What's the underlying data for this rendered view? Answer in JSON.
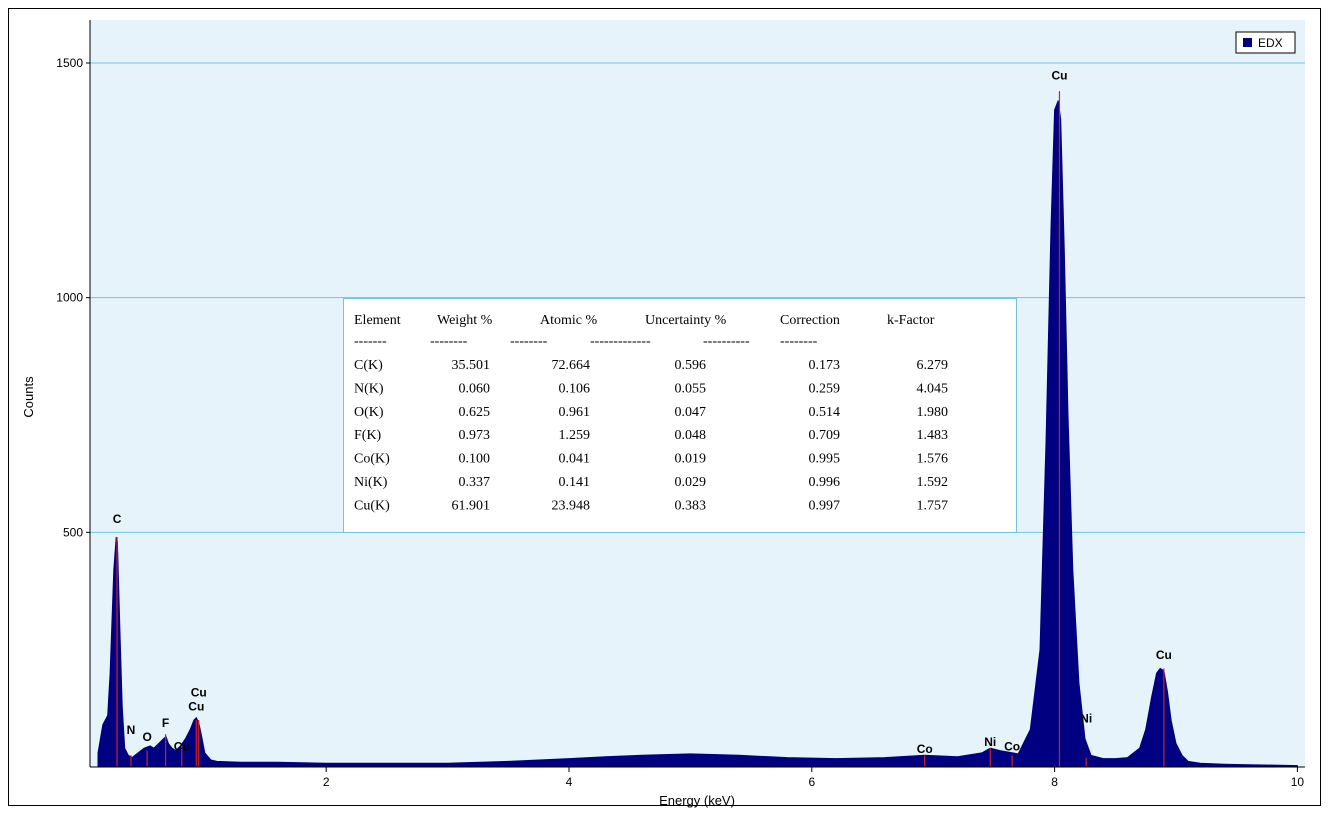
{
  "chart_data": {
    "type": "area",
    "xlabel": "Energy (keV)",
    "ylabel": "Counts",
    "xlim": [
      0,
      10
    ],
    "ylim": [
      0,
      1600
    ],
    "x_ticks": [
      2,
      4,
      6,
      8,
      10
    ],
    "y_ticks": [
      500,
      1000,
      1500
    ],
    "grid": "horizontal",
    "legend": {
      "position": "top-right",
      "entries": [
        "EDX"
      ]
    },
    "colors": {
      "plot_bg": "#e6f3fa",
      "series": "#000080",
      "marker": "#cc2222",
      "grid": "#70c7dd",
      "frame": "#000000"
    },
    "series": [
      {
        "name": "EDX",
        "x": [
          0.12,
          0.16,
          0.2,
          0.22,
          0.25,
          0.27,
          0.28,
          0.3,
          0.32,
          0.34,
          0.37,
          0.4,
          0.45,
          0.5,
          0.55,
          0.58,
          0.62,
          0.66,
          0.68,
          0.7,
          0.73,
          0.76,
          0.8,
          0.84,
          0.88,
          0.91,
          0.93,
          0.95,
          0.97,
          1.0,
          1.05,
          1.1,
          1.3,
          1.6,
          2.0,
          2.5,
          3.0,
          3.5,
          4.0,
          4.3,
          4.6,
          5.0,
          5.4,
          5.8,
          6.2,
          6.6,
          6.93,
          7.2,
          7.4,
          7.47,
          7.55,
          7.7,
          7.8,
          7.88,
          7.93,
          7.97,
          8.0,
          8.03,
          8.05,
          8.08,
          8.11,
          8.15,
          8.2,
          8.25,
          8.3,
          8.4,
          8.5,
          8.6,
          8.7,
          8.75,
          8.8,
          8.84,
          8.87,
          8.9,
          8.93,
          8.96,
          9.0,
          9.05,
          9.1,
          9.2,
          9.4,
          9.6,
          9.8,
          10.0
        ],
        "values": [
          30,
          90,
          110,
          200,
          420,
          490,
          480,
          300,
          130,
          40,
          25,
          20,
          30,
          40,
          45,
          40,
          50,
          60,
          65,
          50,
          40,
          35,
          45,
          60,
          80,
          100,
          105,
          95,
          70,
          30,
          15,
          12,
          10,
          10,
          8,
          8,
          8,
          12,
          18,
          22,
          25,
          28,
          25,
          20,
          18,
          20,
          25,
          22,
          30,
          40,
          35,
          28,
          80,
          250,
          700,
          1150,
          1400,
          1420,
          1380,
          1100,
          750,
          420,
          180,
          60,
          25,
          18,
          18,
          20,
          40,
          80,
          150,
          200,
          210,
          205,
          160,
          100,
          50,
          25,
          12,
          8,
          6,
          5,
          4,
          3
        ]
      }
    ],
    "peaks": [
      {
        "label": "C",
        "x": 0.277,
        "marker_height": 490,
        "label_y": 520
      },
      {
        "label": "N",
        "x": 0.392,
        "marker_height": 25,
        "label_y": 70
      },
      {
        "label": "O",
        "x": 0.525,
        "marker_height": 35,
        "label_y": 55
      },
      {
        "label": "F",
        "x": 0.677,
        "marker_height": 70,
        "label_y": 85
      },
      {
        "label": "Cu",
        "x": 0.81,
        "marker_height": 45,
        "label_y": 35
      },
      {
        "label": "Cu",
        "x": 0.93,
        "marker_height": 100,
        "label_y": 120
      },
      {
        "label": "Cu",
        "x": 0.95,
        "marker_height": 100,
        "label_y": 150
      },
      {
        "label": "Co",
        "x": 6.93,
        "marker_height": 25,
        "label_y": 30
      },
      {
        "label": "Ni",
        "x": 7.47,
        "marker_height": 40,
        "label_y": 45
      },
      {
        "label": "Co",
        "x": 7.65,
        "marker_height": 25,
        "label_y": 35
      },
      {
        "label": "Cu",
        "x": 8.04,
        "marker_height": 1440,
        "label_y": 1465
      },
      {
        "label": "Ni",
        "x": 8.26,
        "marker_height": 20,
        "label_y": 95
      },
      {
        "label": "Cu",
        "x": 8.9,
        "marker_height": 210,
        "label_y": 230
      }
    ],
    "table": {
      "headers": [
        "Element",
        "Weight %",
        "Atomic %",
        "Uncertainty %",
        "Correction",
        "k-Factor"
      ],
      "separator": [
        "-------",
        "--------",
        "--------",
        "-------------",
        "----------",
        "--------"
      ],
      "rows": [
        [
          "C(K)",
          "35.501",
          "72.664",
          "0.596",
          "0.173",
          "6.279"
        ],
        [
          "N(K)",
          "0.060",
          "0.106",
          "0.055",
          "0.259",
          "4.045"
        ],
        [
          "O(K)",
          "0.625",
          "0.961",
          "0.047",
          "0.514",
          "1.980"
        ],
        [
          "F(K)",
          "0.973",
          "1.259",
          "0.048",
          "0.709",
          "1.483"
        ],
        [
          "Co(K)",
          "0.100",
          "0.041",
          "0.019",
          "0.995",
          "1.576"
        ],
        [
          "Ni(K)",
          "0.337",
          "0.141",
          "0.029",
          "0.996",
          "1.592"
        ],
        [
          "Cu(K)",
          "61.901",
          "23.948",
          "0.383",
          "0.997",
          "1.757"
        ]
      ]
    }
  }
}
